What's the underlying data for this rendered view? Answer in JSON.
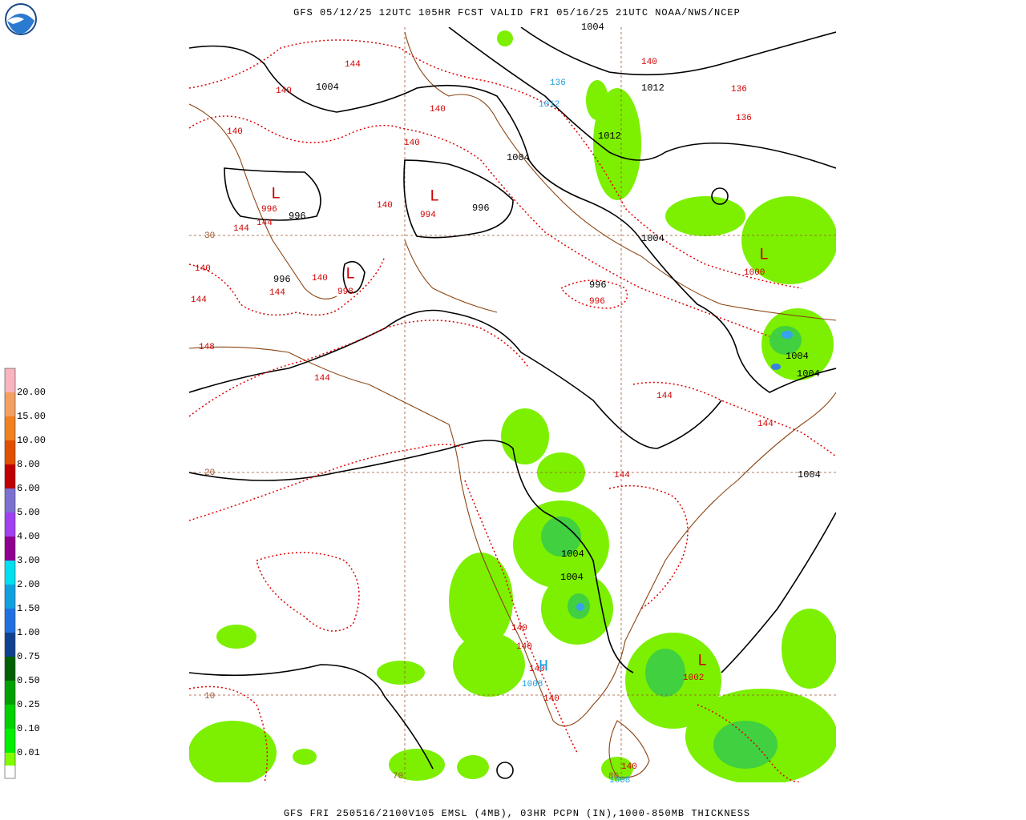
{
  "header": {
    "title": "GFS 05/12/25 12UTC 105HR FCST VALID FRI 05/16/25 21UTC NOAA/NWS/NCEP"
  },
  "footer": "GFS FRI 250516/2100V105 EMSL (4MB), 03HR PCPN (IN),1000-850MB THICKNESS",
  "legend": {
    "labels": [
      "20.00",
      "15.00",
      "10.00",
      "8.00",
      "6.00",
      "5.00",
      "4.00",
      "3.00",
      "2.00",
      "1.50",
      "1.00",
      "0.75",
      "0.50",
      "0.25",
      "0.10",
      "0.01"
    ]
  },
  "map_labels": [
    "1004",
    "140",
    "1012",
    "136",
    "136",
    "144",
    "140",
    "1004",
    "136",
    "1012",
    "140",
    "140",
    "140",
    "1012",
    "1004",
    "L",
    "996",
    "996",
    "144",
    "144",
    "L",
    "994",
    "996",
    "140",
    "1004",
    "L",
    "1000",
    "140",
    "996",
    "140",
    "L",
    "998",
    "144",
    "144",
    "996",
    "996",
    "148",
    "144",
    "1004",
    "1004",
    "144",
    "144",
    "20",
    "144",
    "1004",
    "1004",
    "1004",
    "140",
    "140",
    "140",
    "H",
    "1008",
    "L",
    "1002",
    "10",
    "140",
    "70",
    "80",
    "140",
    "1008",
    "30"
  ]
}
